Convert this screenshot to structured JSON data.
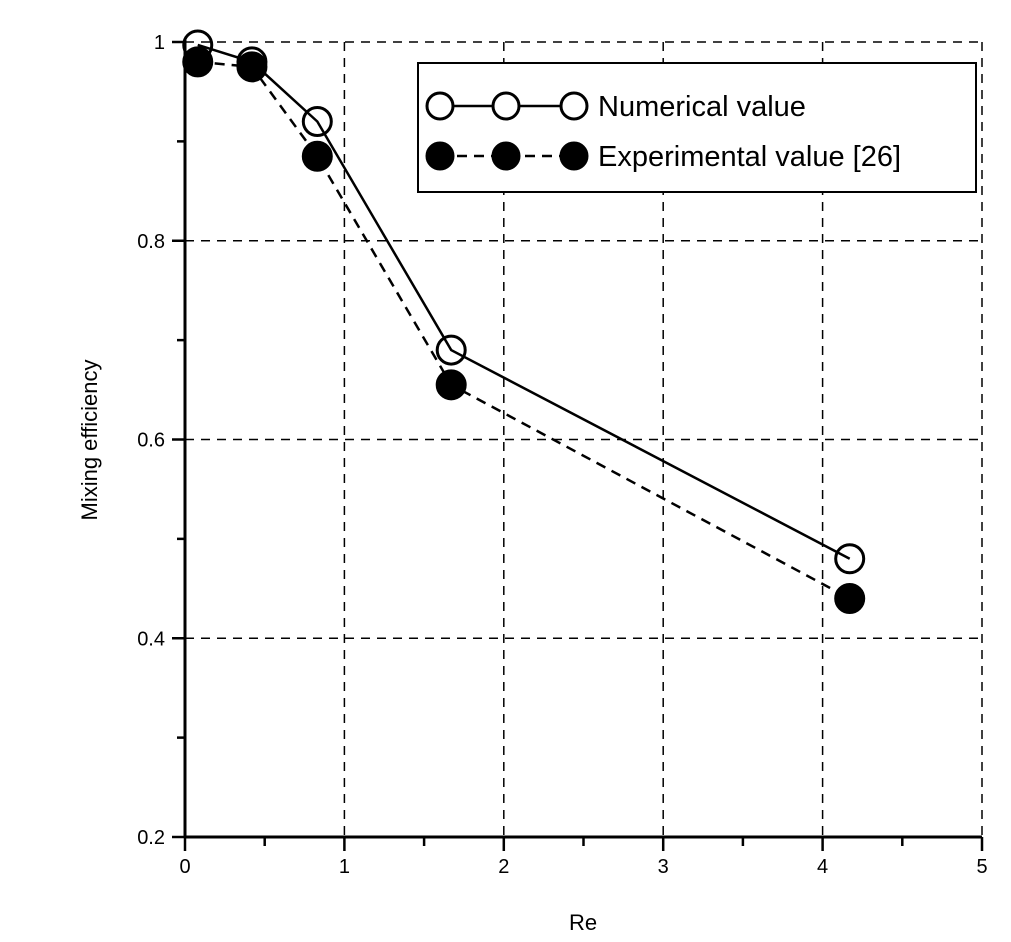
{
  "chart_data": {
    "type": "line",
    "xlabel": "Re",
    "ylabel": "Mixing efficiency",
    "xlim": [
      0,
      5
    ],
    "ylim": [
      0.2,
      1.0
    ],
    "x_ticks": [
      0,
      1,
      2,
      3,
      4,
      5
    ],
    "x_tick_labels": [
      "0",
      "1",
      "2",
      "3",
      "4",
      "5"
    ],
    "y_ticks": [
      0.2,
      0.4,
      0.6,
      0.8,
      1.0
    ],
    "y_tick_labels": [
      "0.2",
      "0.4",
      "0.6",
      "0.8",
      "1"
    ],
    "grid": true,
    "legend_position": "top-right",
    "series": [
      {
        "name": "Numerical value",
        "style": "solid",
        "marker": "open-circle",
        "color": "#000000",
        "x": [
          0.08,
          0.42,
          0.83,
          1.67,
          4.17
        ],
        "y": [
          0.997,
          0.98,
          0.92,
          0.69,
          0.48
        ]
      },
      {
        "name": "Experimental value [26]",
        "style": "dashed",
        "marker": "filled-circle",
        "color": "#000000",
        "x": [
          0.08,
          0.42,
          0.83,
          1.67,
          4.17
        ],
        "y": [
          0.98,
          0.975,
          0.885,
          0.655,
          0.44
        ]
      }
    ]
  }
}
